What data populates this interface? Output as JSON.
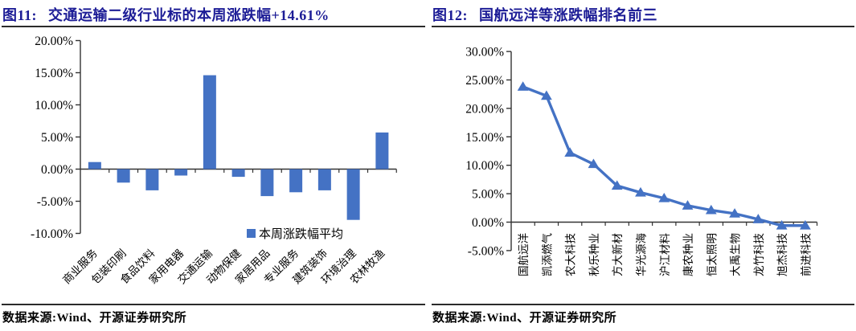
{
  "colors": {
    "accent_blue": "#4472C4",
    "title_navy": "#1c1c96",
    "axis_black": "#333333",
    "rule_dark": "#2b2b2b"
  },
  "figures": [
    {
      "label": "图11:",
      "title": "交通运输二级行业标的本周涨跌幅+14.61%",
      "source": "数据来源:Wind、开源证券研究所"
    },
    {
      "label": "图12:",
      "title": "国航远洋等涨跌幅排名前三",
      "source": "数据来源:Wind、开源证券研究所"
    }
  ],
  "chart_data": [
    {
      "type": "bar",
      "title": "交通运输二级行业标的本周涨跌幅+14.61%",
      "categories": [
        "商业服务",
        "包装印刷",
        "食品饮料",
        "家用电器",
        "交通运输",
        "动物保健",
        "家居用品",
        "专业服务",
        "建筑装饰",
        "环境治理",
        "农林牧渔"
      ],
      "values": [
        1.1,
        -2.1,
        -3.3,
        -1.0,
        14.61,
        -1.2,
        -4.2,
        -3.6,
        -3.3,
        -7.9,
        5.7
      ],
      "series_name": "本周涨跌幅平均",
      "ylim": [
        -10,
        20
      ],
      "yticks": [
        {
          "v": 20,
          "label": "20.00%"
        },
        {
          "v": 15,
          "label": "15.00%"
        },
        {
          "v": 10,
          "label": "10.00%"
        },
        {
          "v": 5,
          "label": "5.00%"
        },
        {
          "v": 0,
          "label": "0.00%"
        },
        {
          "v": -5,
          "label": "-5.00%"
        },
        {
          "v": -10,
          "label": "-10.00%"
        }
      ],
      "grid": false,
      "legend_position": "inside-bottom-right",
      "bar_color": "#4472C4",
      "xlabel": "",
      "ylabel": ""
    },
    {
      "type": "line",
      "title": "国航远洋等涨跌幅排名前三",
      "categories": [
        "国航远洋",
        "凯添燃气",
        "农大科技",
        "秋乐种业",
        "方大新材",
        "华光源海",
        "沪江材料",
        "康农种业",
        "恒太照明",
        "大禹生物",
        "龙竹科技",
        "旭杰科技",
        "前进科技"
      ],
      "values": [
        23.8,
        22.2,
        12.2,
        10.2,
        6.4,
        5.2,
        4.2,
        2.9,
        2.1,
        1.5,
        0.5,
        -0.6,
        -0.6
      ],
      "marker": "triangle-up",
      "ylim": [
        -5,
        30
      ],
      "yticks": [
        {
          "v": 30,
          "label": "30.00%"
        },
        {
          "v": 25,
          "label": "25.00%"
        },
        {
          "v": 20,
          "label": "20.00%"
        },
        {
          "v": 15,
          "label": "15.00%"
        },
        {
          "v": 10,
          "label": "10.00%"
        },
        {
          "v": 5,
          "label": "5.00%"
        },
        {
          "v": 0,
          "label": "0.00%"
        },
        {
          "v": -5,
          "label": "-5.00%"
        }
      ],
      "grid": false,
      "legend_position": "none",
      "line_color": "#4472C4",
      "xlabel": "",
      "ylabel": ""
    }
  ]
}
